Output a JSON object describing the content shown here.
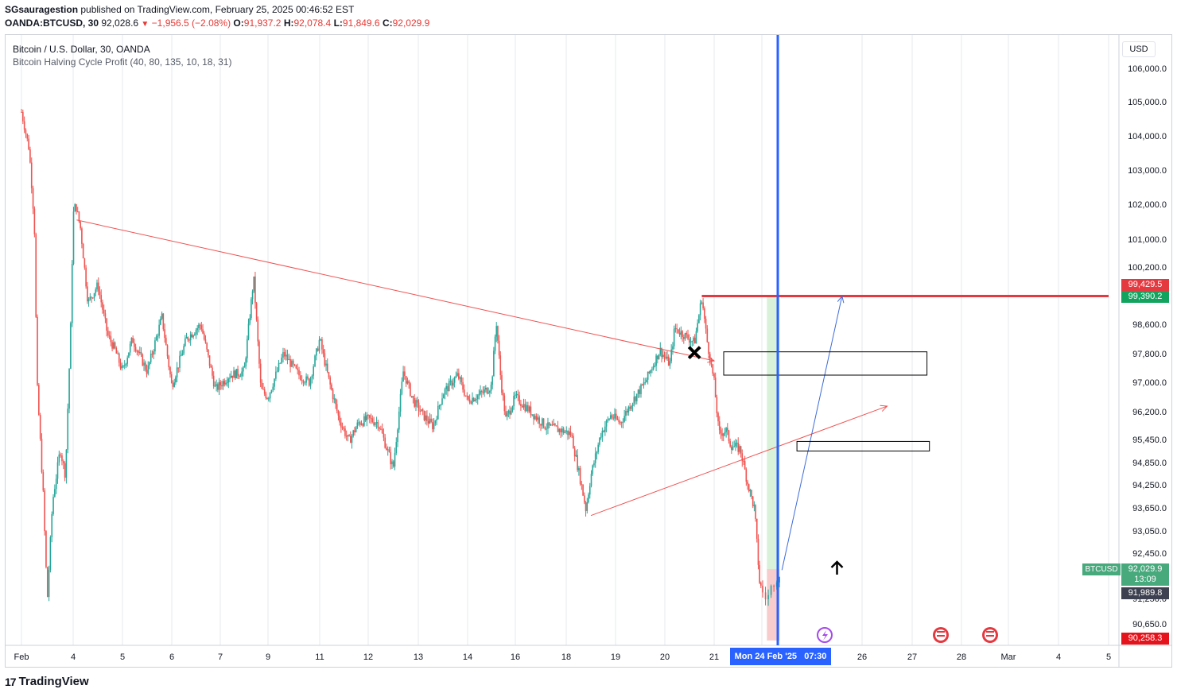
{
  "header": {
    "author": "SGsauragestion",
    "published_text": " published on TradingView.com, February 25, 2025 00:46:52 EST",
    "symbol": "OANDA:BTCUSD, 30",
    "last": "92,028.6",
    "down_arrow": "▼",
    "change": "−1,956.5 (−2.08%)",
    "o_label": "O:",
    "o": "91,937.2",
    "h_label": "H:",
    "h": "92,078.4",
    "l_label": "L:",
    "l": "91,849.6",
    "c_label": "C:",
    "c": "92,029.9"
  },
  "legend": {
    "title": "Bitcoin / U.S. Dollar, 30, OANDA",
    "indicator": "Bitcoin Halving Cycle Profit (40, 80, 135, 10, 18, 31)"
  },
  "currency": "USD",
  "price_tags": {
    "red_line": "99,429.5",
    "green_line": "99,390.2",
    "symbol": "BTCUSD",
    "last_price": "92,029.9",
    "countdown": "13:09",
    "crosshair_price": "91,989.8",
    "stop_price": "90,258.3"
  },
  "crosshair_date": "Mon 24 Feb '25   07:30",
  "brand": "TradingView",
  "chart_data": {
    "type": "candlestick",
    "title": "Bitcoin / U.S. Dollar, 30, OANDA",
    "y_axis": {
      "range": [
        90200,
        106600
      ],
      "ticks": [
        {
          "value": 106000,
          "label": "106,000.0"
        },
        {
          "value": 105000,
          "label": "105,000.0"
        },
        {
          "value": 104000,
          "label": "104,000.0"
        },
        {
          "value": 103000,
          "label": "103,000.0"
        },
        {
          "value": 102000,
          "label": "102,000.0"
        },
        {
          "value": 101000,
          "label": "101,000.0"
        },
        {
          "value": 100200,
          "label": "100,200.0"
        },
        {
          "value": 98600,
          "label": "98,600.0"
        },
        {
          "value": 97800,
          "label": "97,800.0"
        },
        {
          "value": 97000,
          "label": "97,000.0"
        },
        {
          "value": 96200,
          "label": "96,200.0"
        },
        {
          "value": 95450,
          "label": "95,450.0"
        },
        {
          "value": 94850,
          "label": "94,850.0"
        },
        {
          "value": 94250,
          "label": "94,250.0"
        },
        {
          "value": 93650,
          "label": "93,650.0"
        },
        {
          "value": 93050,
          "label": "93,050.0"
        },
        {
          "value": 92450,
          "label": "92,450.0"
        },
        {
          "value": 91250,
          "label": "91,250.0"
        },
        {
          "value": 90650,
          "label": "90,650.0"
        }
      ]
    },
    "x_axis": {
      "ticks": [
        {
          "day": 0,
          "label": "Feb"
        },
        {
          "day": 1,
          "label": "4"
        },
        {
          "day": 2,
          "label": "5"
        },
        {
          "day": 3,
          "label": "6"
        },
        {
          "day": 4,
          "label": "7"
        },
        {
          "day": 5,
          "label": "9"
        },
        {
          "day": 6,
          "label": "11"
        },
        {
          "day": 7,
          "label": "12"
        },
        {
          "day": 8,
          "label": "13"
        },
        {
          "day": 9,
          "label": "14"
        },
        {
          "day": 10,
          "label": "16"
        },
        {
          "day": 11,
          "label": "18"
        },
        {
          "day": 12,
          "label": "19"
        },
        {
          "day": 13,
          "label": "20"
        },
        {
          "day": 14,
          "label": "21"
        },
        {
          "day": 16,
          "label": "26"
        },
        {
          "day": 17,
          "label": "27"
        },
        {
          "day": 18,
          "label": "28"
        },
        {
          "day": 19,
          "label": "Mar"
        },
        {
          "day": 20,
          "label": "4"
        },
        {
          "day": 21,
          "label": "5"
        }
      ]
    },
    "price_path": [
      [
        0.0,
        104700
      ],
      [
        0.15,
        103600
      ],
      [
        0.25,
        101400
      ],
      [
        0.3,
        97000
      ],
      [
        0.42,
        94000
      ],
      [
        0.5,
        91200
      ],
      [
        0.6,
        93800
      ],
      [
        0.75,
        95200
      ],
      [
        0.85,
        94500
      ],
      [
        0.95,
        98400
      ],
      [
        1.0,
        101700
      ],
      [
        1.05,
        102000
      ],
      [
        1.15,
        101300
      ],
      [
        1.3,
        99200
      ],
      [
        1.5,
        99700
      ],
      [
        1.7,
        98300
      ],
      [
        1.85,
        97900
      ],
      [
        2.0,
        97300
      ],
      [
        2.2,
        98200
      ],
      [
        2.5,
        97300
      ],
      [
        2.8,
        98800
      ],
      [
        3.0,
        96900
      ],
      [
        3.3,
        98200
      ],
      [
        3.6,
        98600
      ],
      [
        3.9,
        96800
      ],
      [
        4.2,
        97200
      ],
      [
        4.5,
        97300
      ],
      [
        4.7,
        99900
      ],
      [
        4.85,
        96800
      ],
      [
        5.0,
        96600
      ],
      [
        5.3,
        97800
      ],
      [
        5.6,
        97200
      ],
      [
        5.8,
        97000
      ],
      [
        6.0,
        98200
      ],
      [
        6.2,
        97000
      ],
      [
        6.4,
        96000
      ],
      [
        6.6,
        95400
      ],
      [
        6.8,
        95900
      ],
      [
        7.0,
        96000
      ],
      [
        7.2,
        95900
      ],
      [
        7.5,
        94700
      ],
      [
        7.7,
        97300
      ],
      [
        7.9,
        96500
      ],
      [
        8.1,
        96100
      ],
      [
        8.3,
        95800
      ],
      [
        8.5,
        96700
      ],
      [
        8.8,
        97200
      ],
      [
        9.0,
        96500
      ],
      [
        9.3,
        96700
      ],
      [
        9.5,
        96900
      ],
      [
        9.6,
        98700
      ],
      [
        9.7,
        97000
      ],
      [
        9.8,
        96000
      ],
      [
        10.0,
        96600
      ],
      [
        10.3,
        96200
      ],
      [
        10.6,
        95800
      ],
      [
        10.9,
        95700
      ],
      [
        11.1,
        95600
      ],
      [
        11.3,
        94300
      ],
      [
        11.4,
        93600
      ],
      [
        11.5,
        94500
      ],
      [
        11.7,
        95600
      ],
      [
        11.9,
        96100
      ],
      [
        12.1,
        95900
      ],
      [
        12.3,
        96400
      ],
      [
        12.6,
        97000
      ],
      [
        12.9,
        97900
      ],
      [
        13.1,
        97500
      ],
      [
        13.2,
        98500
      ],
      [
        13.4,
        98300
      ],
      [
        13.6,
        98100
      ],
      [
        13.75,
        99350
      ],
      [
        13.85,
        98200
      ],
      [
        14.0,
        97000
      ],
      [
        14.1,
        95600
      ],
      [
        14.25,
        95700
      ],
      [
        14.35,
        95300
      ],
      [
        14.55,
        95200
      ],
      [
        14.7,
        94300
      ],
      [
        14.85,
        93600
      ],
      [
        14.95,
        91700
      ],
      [
        15.05,
        91200
      ],
      [
        15.1,
        91600
      ],
      [
        15.15,
        91800
      ],
      [
        15.2,
        92030
      ]
    ],
    "drawings": {
      "descending_trendline": {
        "from": [
          1.07,
          101550
        ],
        "to": [
          14.0,
          97600
        ],
        "color": "#f05252"
      },
      "ascending_trendline": {
        "from": [
          11.5,
          93450
        ],
        "to": [
          16.5,
          96350
        ],
        "color": "#f05252"
      },
      "resistance_line": {
        "from": [
          13.75,
          99390
        ],
        "to": [
          21.35,
          99390
        ],
        "price": 99390.2,
        "color": "#e53940"
      },
      "projection_arrow": {
        "from": [
          15.2,
          92000
        ],
        "to": [
          15.8,
          99390
        ],
        "color": "#3d6bd8"
      },
      "supply_box": {
        "from": [
          14.2,
          97850
        ],
        "to": [
          17.3,
          97200
        ]
      },
      "demand_box": {
        "from": [
          15.35,
          95400
        ],
        "to": [
          17.35,
          95150
        ]
      },
      "long_position": {
        "entry": 92030,
        "target": 99390,
        "stop": 90258
      },
      "x_marker": {
        "day": 13.6,
        "price": 97830
      },
      "up_arrow_marker": {
        "day": 15.75,
        "price": 92050
      },
      "crosshair_day": 15.0
    }
  }
}
